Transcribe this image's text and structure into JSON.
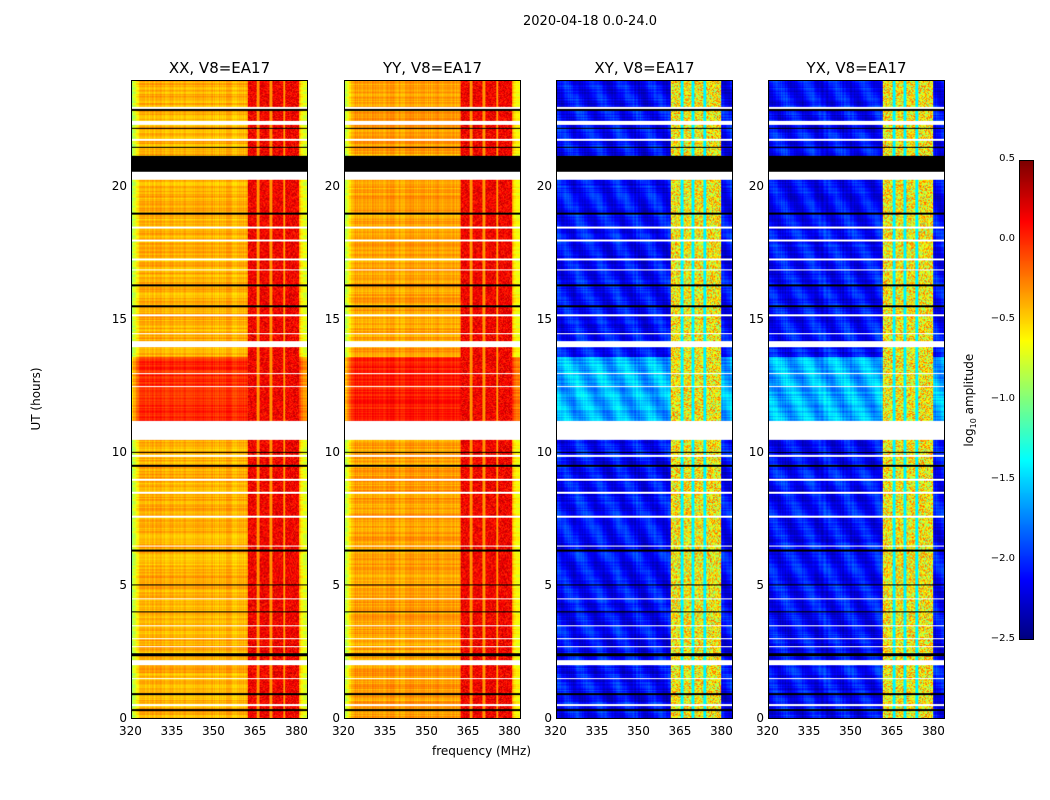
{
  "chart_data": {
    "type": "heatmap",
    "title": "2020-04-18 0.0-24.0",
    "xlabel": "frequency (MHz)",
    "ylabel": "UT (hours)",
    "xlim": [
      320,
      384
    ],
    "ylim": [
      0,
      24
    ],
    "xticks": [
      "320",
      "335",
      "350",
      "365",
      "380"
    ],
    "xtick_values": [
      320,
      335,
      350,
      365,
      380
    ],
    "yticks": [
      "0",
      "5",
      "10",
      "15",
      "20"
    ],
    "ytick_values": [
      0,
      5,
      10,
      15,
      20
    ],
    "panels": [
      {
        "title": "XX, V8=EA17",
        "kind": "parallel",
        "base": -0.4,
        "band": [
          362,
          381
        ],
        "band_value": 0.15,
        "band_gaps": [
          366,
          370.5,
          375.5
        ]
      },
      {
        "title": "YY, V8=EA17",
        "kind": "parallel",
        "base": -0.35,
        "band": [
          362,
          381
        ],
        "band_value": 0.15,
        "band_gaps": [
          366,
          370.5,
          375.5
        ]
      },
      {
        "title": "XY, V8=EA17",
        "kind": "cross",
        "base": -2.1,
        "band": [
          361.5,
          380
        ],
        "band_value": -0.6,
        "band_gaps": [
          365.5,
          369.5,
          374
        ]
      },
      {
        "title": "YX, V8=EA17",
        "kind": "cross",
        "base": -2.1,
        "band": [
          361.5,
          380
        ],
        "band_value": -0.6,
        "band_gaps": [
          365.5,
          369.5,
          374
        ]
      }
    ],
    "bright_interval_hours": [
      11.2,
      13.6
    ],
    "flagged_white_hours": [
      [
        20.3,
        20.6
      ],
      [
        2.0,
        2.2
      ],
      [
        14.0,
        14.2
      ],
      [
        10.5,
        11.2
      ],
      [
        22.35,
        22.5
      ]
    ],
    "flagged_black_hours": [
      [
        20.6,
        21.2
      ],
      [
        2.35,
        2.45
      ],
      [
        0.9,
        0.95
      ],
      [
        0.3,
        0.35
      ],
      [
        22.9,
        22.95
      ],
      [
        22.2,
        22.25
      ],
      [
        21.5,
        21.55
      ],
      [
        19.0,
        19.05
      ],
      [
        16.3,
        16.35
      ],
      [
        15.5,
        15.55
      ],
      [
        10.0,
        10.05
      ],
      [
        9.5,
        9.55
      ],
      [
        6.3,
        6.35
      ],
      [
        5.0,
        5.05
      ],
      [
        4.0,
        4.05
      ]
    ],
    "white_lines_hours": [
      23.0,
      21.8,
      18.5,
      18.0,
      17.3,
      16.9,
      15.2,
      14.5,
      13.0,
      12.5,
      9.9,
      9.0,
      8.5,
      7.6,
      6.5,
      4.5,
      3.5,
      3.0,
      2.7,
      1.5,
      0.5
    ],
    "colorbar": {
      "label": "log10 amplitude",
      "label_base": "log",
      "label_sub": "10",
      "label_rest": " amplitude",
      "range": [
        -2.5,
        0.5
      ],
      "ticks": [
        "0.5",
        "0.0",
        "−0.5",
        "−1.0",
        "−1.5",
        "−2.0",
        "−2.5"
      ],
      "tick_values": [
        0.5,
        0,
        -0.5,
        -1,
        -1.5,
        -2,
        -2.5
      ],
      "colormap": "jet"
    }
  }
}
